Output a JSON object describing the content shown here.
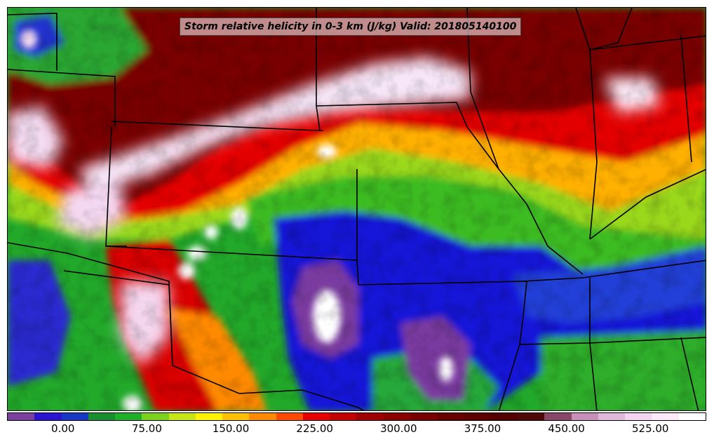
{
  "title": "Storm relative helicity in 0-3 km (J/kg) Valid: 201805140100",
  "colorbar": {
    "colors": [
      "#7b3fa0",
      "#2a14d2",
      "#1638c4",
      "#17902f",
      "#1fb02a",
      "#7cd21a",
      "#c8e614",
      "#fff300",
      "#ffc000",
      "#ff8a00",
      "#ff4a00",
      "#e80000",
      "#c40000",
      "#a00000",
      "#8c0000",
      "#780000",
      "#680000",
      "#5c0000",
      "#540000",
      "#500808",
      "#8a4868",
      "#c890b8",
      "#e0b8dc",
      "#f4d4f0",
      "#fbe8f8",
      "#ffffff"
    ],
    "tick_labels": [
      "0.00",
      "75.00",
      "150.00",
      "225.00",
      "300.00",
      "375.00",
      "450.00",
      "525.00"
    ],
    "tick_values": [
      0,
      75,
      150,
      225,
      300,
      375,
      450,
      525
    ]
  },
  "map": {
    "field": "Storm relative helicity 0-3 km",
    "units": "J/kg",
    "valid": "201805140100"
  }
}
